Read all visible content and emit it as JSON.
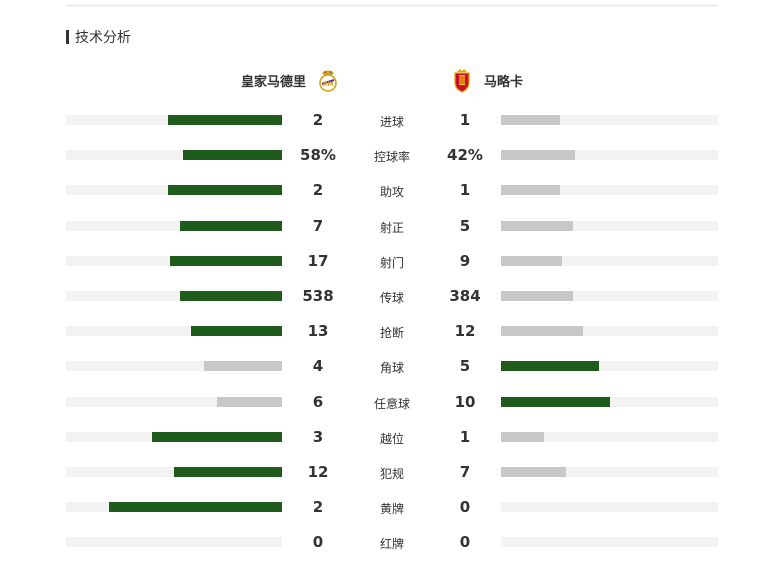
{
  "section": {
    "title": "技术分析"
  },
  "teams": {
    "home": {
      "name": "皇家马德里",
      "badge_icon": "real-madrid-crest-icon"
    },
    "away": {
      "name": "马略卡",
      "badge_icon": "mallorca-crest-icon"
    }
  },
  "colors": {
    "leader": "#1f5c1b",
    "trailer": "#c8c8c8",
    "track": "#f3f3f3"
  },
  "stats": [
    {
      "label": "进球",
      "home": "2",
      "away": "1",
      "home_share": 0.53,
      "away_share": 0.27,
      "home_leads": true
    },
    {
      "label": "控球率",
      "home": "58%",
      "away": "42%",
      "home_share": 0.46,
      "away_share": 0.34,
      "home_leads": true
    },
    {
      "label": "助攻",
      "home": "2",
      "away": "1",
      "home_share": 0.53,
      "away_share": 0.27,
      "home_leads": true
    },
    {
      "label": "射正",
      "home": "7",
      "away": "5",
      "home_share": 0.47,
      "away_share": 0.33,
      "home_leads": true
    },
    {
      "label": "射门",
      "home": "17",
      "away": "9",
      "home_share": 0.52,
      "away_share": 0.28,
      "home_leads": true
    },
    {
      "label": "传球",
      "home": "538",
      "away": "384",
      "home_share": 0.47,
      "away_share": 0.33,
      "home_leads": true
    },
    {
      "label": "抢断",
      "home": "13",
      "away": "12",
      "home_share": 0.42,
      "away_share": 0.38,
      "home_leads": true
    },
    {
      "label": "角球",
      "home": "4",
      "away": "5",
      "home_share": 0.36,
      "away_share": 0.45,
      "home_leads": false
    },
    {
      "label": "任意球",
      "home": "6",
      "away": "10",
      "home_share": 0.3,
      "away_share": 0.5,
      "home_leads": false
    },
    {
      "label": "越位",
      "home": "3",
      "away": "1",
      "home_share": 0.6,
      "away_share": 0.2,
      "home_leads": true
    },
    {
      "label": "犯规",
      "home": "12",
      "away": "7",
      "home_share": 0.5,
      "away_share": 0.3,
      "home_leads": true
    },
    {
      "label": "黄牌",
      "home": "2",
      "away": "0",
      "home_share": 0.8,
      "away_share": 0.0,
      "home_leads": true
    },
    {
      "label": "红牌",
      "home": "0",
      "away": "0",
      "home_share": 0.0,
      "away_share": 0.0,
      "home_leads": false
    }
  ]
}
